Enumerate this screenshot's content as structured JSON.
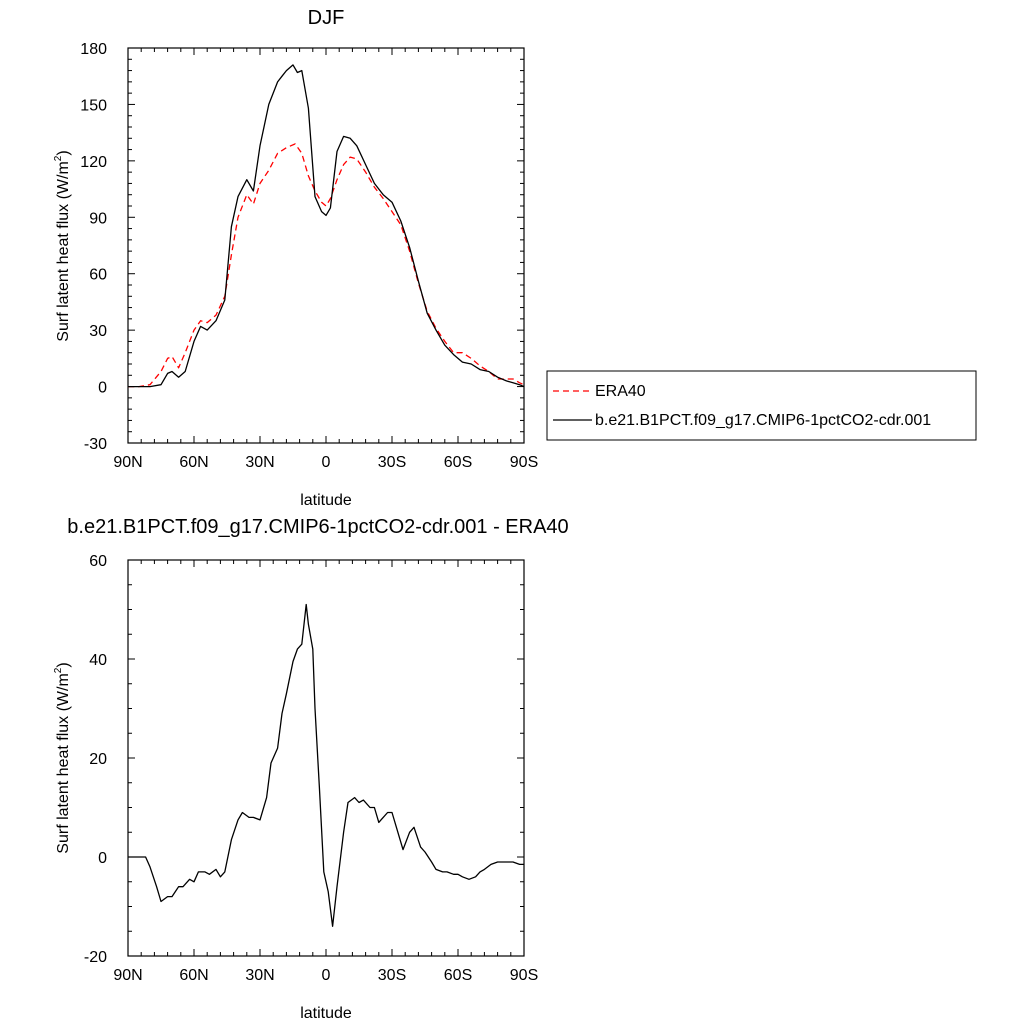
{
  "chart_data": [
    {
      "type": "line",
      "title": "DJF",
      "xlabel": "latitude",
      "ylabel": "Surf latent heat flux (W/m",
      "ylabel_sup": "2",
      "ylabel_tail": ")",
      "xlim": [
        90,
        -90
      ],
      "ylim": [
        -30,
        180
      ],
      "xticks": [
        90,
        60,
        30,
        0,
        -30,
        -60,
        -90
      ],
      "xtick_labels": [
        "90N",
        "60N",
        "30N",
        "0",
        "30S",
        "60S",
        "90S"
      ],
      "yticks": [
        -30,
        0,
        30,
        60,
        90,
        120,
        150,
        180
      ],
      "ytick_labels": [
        "-30",
        "0",
        "30",
        "60",
        "90",
        "120",
        "150",
        "180"
      ],
      "legend_position": "right",
      "grid": false,
      "series": [
        {
          "name": "ERA40",
          "color": "#ff0000",
          "dashed": true,
          "x": [
            90,
            85,
            80,
            75,
            72,
            70,
            67,
            64,
            60,
            57,
            54,
            50,
            46,
            43,
            40,
            36,
            33,
            30,
            26,
            22,
            18,
            14,
            11,
            8,
            5,
            2,
            0,
            -2,
            -5,
            -8,
            -11,
            -14,
            -18,
            -22,
            -26,
            -30,
            -34,
            -38,
            -42,
            -46,
            -50,
            -54,
            -58,
            -62,
            -66,
            -70,
            -74,
            -78,
            -82,
            -85,
            -88,
            -90
          ],
          "y": [
            0,
            0,
            1,
            8,
            15,
            16,
            10,
            18,
            30,
            35,
            34,
            38,
            48,
            70,
            90,
            102,
            97,
            108,
            115,
            124,
            127,
            129,
            124,
            112,
            104,
            98,
            96,
            100,
            110,
            118,
            122,
            121,
            114,
            106,
            100,
            93,
            86,
            72,
            55,
            40,
            31,
            24,
            18,
            18,
            15,
            11,
            8,
            4,
            4,
            4,
            2,
            1
          ]
        },
        {
          "name": "b.e21.B1PCT.f09_g17.CMIP6-1pctCO2-cdr.001",
          "color": "#000000",
          "dashed": false,
          "x": [
            90,
            85,
            80,
            75,
            72,
            70,
            67,
            64,
            60,
            57,
            54,
            50,
            46,
            43,
            40,
            36,
            33,
            30,
            26,
            22,
            20,
            18,
            15,
            13,
            11,
            8,
            5,
            2,
            0,
            -2,
            -5,
            -8,
            -11,
            -14,
            -18,
            -22,
            -26,
            -30,
            -34,
            -38,
            -42,
            -46,
            -50,
            -54,
            -58,
            -62,
            -66,
            -70,
            -74,
            -78,
            -82,
            -85,
            -88,
            -90
          ],
          "y": [
            0,
            0,
            0,
            1,
            7,
            8,
            5,
            8,
            24,
            32,
            30,
            35,
            46,
            85,
            101,
            110,
            104,
            128,
            150,
            162,
            165,
            168,
            171,
            167,
            168,
            148,
            101,
            93,
            91,
            95,
            125,
            133,
            132,
            128,
            118,
            108,
            102,
            98,
            88,
            74,
            56,
            39,
            30,
            22,
            17,
            13,
            12,
            9,
            8,
            5,
            3,
            2,
            1,
            0
          ]
        }
      ]
    },
    {
      "type": "line",
      "title": "b.e21.B1PCT.f09_g17.CMIP6-1pctCO2-cdr.001 - ERA40",
      "xlabel": "latitude",
      "ylabel": "Surf latent heat flux (W/m",
      "ylabel_sup": "2",
      "ylabel_tail": ")",
      "xlim": [
        90,
        -90
      ],
      "ylim": [
        -20,
        60
      ],
      "xticks": [
        90,
        60,
        30,
        0,
        -30,
        -60,
        -90
      ],
      "xtick_labels": [
        "90N",
        "60N",
        "30N",
        "0",
        "30S",
        "60S",
        "90S"
      ],
      "yticks": [
        -20,
        0,
        20,
        40,
        60
      ],
      "ytick_labels": [
        "-20",
        "0",
        "20",
        "40",
        "60"
      ],
      "grid": false,
      "series": [
        {
          "color": "#000000",
          "dashed": false,
          "x": [
            90,
            85,
            82,
            80,
            77,
            75,
            72,
            70,
            67,
            65,
            62,
            60,
            58,
            55,
            53,
            50,
            48,
            46,
            43,
            40,
            38,
            35,
            33,
            30,
            27,
            25,
            22,
            20,
            18,
            15,
            13,
            11,
            9,
            8,
            6,
            5,
            3,
            1,
            -1,
            -3,
            -5,
            -8,
            -10,
            -13,
            -15,
            -17,
            -20,
            -22,
            -24,
            -26,
            -28,
            -30,
            -32,
            -35,
            -38,
            -40,
            -43,
            -45,
            -48,
            -50,
            -53,
            -55,
            -58,
            -60,
            -62,
            -65,
            -68,
            -70,
            -72,
            -75,
            -78,
            -80,
            -82,
            -85,
            -88,
            -90
          ],
          "y": [
            0,
            0,
            0,
            -2,
            -6,
            -9,
            -8,
            -8,
            -6,
            -6,
            -4.5,
            -5,
            -3,
            -3,
            -3.5,
            -2.5,
            -4,
            -3,
            3.5,
            7.5,
            9,
            8,
            8,
            7.5,
            12,
            19,
            22,
            29,
            33,
            39.5,
            42,
            43,
            51,
            47,
            42,
            30,
            14,
            -3,
            -7,
            -14,
            -6,
            5,
            11,
            12,
            11,
            11.5,
            10,
            10,
            7,
            8,
            9,
            9,
            6,
            1.5,
            5,
            6,
            2,
            1,
            -1,
            -2.5,
            -3,
            -3,
            -3.5,
            -3.5,
            -4,
            -4.5,
            -4,
            -3,
            -2.5,
            -1.5,
            -1,
            -1,
            -1,
            -1,
            -1.5,
            -1.5
          ]
        }
      ]
    }
  ]
}
